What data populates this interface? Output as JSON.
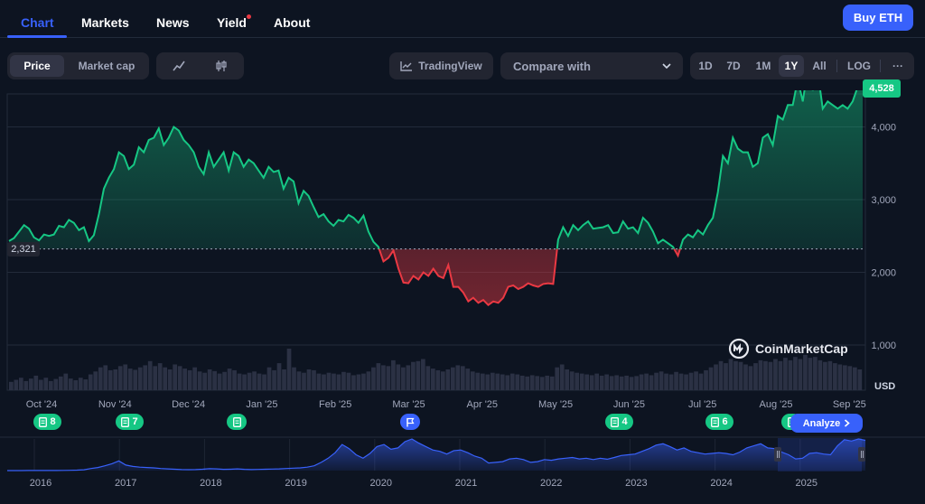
{
  "nav": {
    "tabs": [
      {
        "label": "Chart"
      },
      {
        "label": "Markets"
      },
      {
        "label": "News"
      },
      {
        "label": "Yield"
      },
      {
        "label": "About"
      }
    ],
    "buy_label": "Buy ETH"
  },
  "controls": {
    "price_label": "Price",
    "marketcap_label": "Market cap",
    "tradingview_label": "TradingView",
    "compare_label": "Compare with",
    "ranges": [
      "1D",
      "7D",
      "1M",
      "1Y",
      "All",
      "LOG"
    ],
    "active_range": "1Y",
    "more_label": "···"
  },
  "colors": {
    "up": "#16c784",
    "down": "#ea3943",
    "accent": "#3861fb",
    "background": "#0d1421"
  },
  "chart_data": {
    "type": "area",
    "y_unit": "USD",
    "baseline_value": 2321,
    "baseline_label": "2,321",
    "current_price": 4528,
    "current_price_label": "4,528",
    "ylim": [
      1000,
      4900
    ],
    "y_ticks": [
      1000,
      2000,
      3000,
      4000
    ],
    "y_tick_labels": [
      "1,000",
      "2,000",
      "3,000",
      "4,000"
    ],
    "x_tick_labels": [
      "Oct '24",
      "Nov '24",
      "Dec '24",
      "Jan '25",
      "Feb '25",
      "Mar '25",
      "Apr '25",
      "May '25",
      "Jun '25",
      "Jul '25",
      "Aug '25",
      "Sep '25"
    ],
    "grid": true,
    "prices": [
      2430,
      2470,
      2560,
      2650,
      2600,
      2480,
      2440,
      2520,
      2500,
      2520,
      2640,
      2620,
      2720,
      2680,
      2580,
      2620,
      2430,
      2510,
      2800,
      3150,
      3300,
      3420,
      3650,
      3600,
      3420,
      3480,
      3720,
      3650,
      3820,
      3850,
      3980,
      3750,
      3850,
      4000,
      3950,
      3820,
      3750,
      3650,
      3450,
      3350,
      3650,
      3450,
      3550,
      3650,
      3400,
      3650,
      3600,
      3450,
      3550,
      3500,
      3400,
      3300,
      3450,
      3380,
      3400,
      3150,
      3300,
      3250,
      2950,
      3120,
      3050,
      2900,
      2760,
      2800,
      2700,
      2640,
      2720,
      2700,
      2790,
      2750,
      2680,
      2780,
      2560,
      2420,
      2350,
      2150,
      2200,
      2300,
      2050,
      1860,
      1850,
      1950,
      1900,
      2000,
      1950,
      2050,
      1950,
      1920,
      2100,
      1800,
      1800,
      1720,
      1600,
      1650,
      1580,
      1620,
      1550,
      1600,
      1580,
      1650,
      1800,
      1820,
      1770,
      1800,
      1850,
      1820,
      1800,
      1840,
      1850,
      1840,
      2450,
      2620,
      2500,
      2650,
      2580,
      2650,
      2700,
      2600,
      2610,
      2620,
      2650,
      2540,
      2550,
      2700,
      2600,
      2620,
      2540,
      2750,
      2680,
      2560,
      2400,
      2450,
      2400,
      2350,
      2230,
      2450,
      2520,
      2480,
      2580,
      2520,
      2650,
      2750,
      3100,
      3600,
      3500,
      3850,
      3700,
      3650,
      3650,
      3450,
      3500,
      3850,
      3900,
      3750,
      4150,
      4100,
      4300,
      4300,
      4650,
      4350,
      4800,
      4500,
      4750,
      4250,
      4350,
      4300,
      4250,
      4300,
      4250,
      4350,
      4550,
      4528
    ],
    "volumes": [
      0.2,
      0.25,
      0.3,
      0.22,
      0.28,
      0.35,
      0.25,
      0.3,
      0.22,
      0.27,
      0.33,
      0.4,
      0.28,
      0.24,
      0.3,
      0.26,
      0.38,
      0.45,
      0.55,
      0.6,
      0.48,
      0.5,
      0.58,
      0.62,
      0.52,
      0.49,
      0.55,
      0.6,
      0.7,
      0.58,
      0.65,
      0.55,
      0.5,
      0.62,
      0.58,
      0.52,
      0.48,
      0.55,
      0.45,
      0.42,
      0.5,
      0.46,
      0.4,
      0.44,
      0.52,
      0.48,
      0.4,
      0.38,
      0.42,
      0.45,
      0.4,
      0.38,
      0.55,
      0.48,
      0.65,
      0.5,
      1.0,
      0.55,
      0.45,
      0.42,
      0.5,
      0.48,
      0.4,
      0.38,
      0.42,
      0.4,
      0.38,
      0.44,
      0.42,
      0.36,
      0.38,
      0.4,
      0.45,
      0.55,
      0.65,
      0.6,
      0.58,
      0.72,
      0.62,
      0.55,
      0.6,
      0.68,
      0.7,
      0.75,
      0.58,
      0.52,
      0.48,
      0.45,
      0.5,
      0.55,
      0.6,
      0.58,
      0.52,
      0.45,
      0.42,
      0.4,
      0.38,
      0.42,
      0.4,
      0.38,
      0.36,
      0.4,
      0.38,
      0.35,
      0.33,
      0.36,
      0.34,
      0.32,
      0.35,
      0.33,
      0.55,
      0.62,
      0.5,
      0.45,
      0.42,
      0.4,
      0.38,
      0.36,
      0.4,
      0.35,
      0.38,
      0.34,
      0.36,
      0.33,
      0.35,
      0.32,
      0.34,
      0.38,
      0.4,
      0.36,
      0.42,
      0.45,
      0.4,
      0.38,
      0.44,
      0.4,
      0.38,
      0.42,
      0.45,
      0.4,
      0.48,
      0.55,
      0.62,
      0.7,
      0.65,
      0.75,
      0.7,
      0.68,
      0.62,
      0.58,
      0.65,
      0.72,
      0.7,
      0.68,
      0.75,
      0.7,
      0.78,
      0.72,
      0.8,
      0.75,
      0.85,
      0.78,
      0.8,
      0.72,
      0.68,
      0.7,
      0.65,
      0.62,
      0.6,
      0.58,
      0.55,
      0.5
    ],
    "overview": {
      "type": "area",
      "x_tick_labels": [
        "2016",
        "2017",
        "2018",
        "2019",
        "2020",
        "2021",
        "2022",
        "2023",
        "2024",
        "2025"
      ],
      "prices": [
        2,
        3,
        5,
        8,
        10,
        12,
        14,
        18,
        25,
        40,
        60,
        120,
        300,
        450,
        700,
        1000,
        1400,
        800,
        600,
        500,
        450,
        400,
        300,
        250,
        200,
        150,
        130,
        150,
        200,
        280,
        250,
        180,
        200,
        250,
        180,
        150,
        170,
        200,
        230,
        250,
        300,
        350,
        400,
        500,
        700,
        1200,
        1800,
        2600,
        3800,
        3200,
        2300,
        1800,
        2500,
        3500,
        3800,
        3100,
        3300,
        4200,
        4600,
        4000,
        3500,
        3000,
        2800,
        2400,
        2900,
        3000,
        2600,
        2100,
        1800,
        1100,
        1200,
        1300,
        1700,
        1800,
        1600,
        1200,
        1300,
        1600,
        1500,
        1700,
        1800,
        1900,
        1700,
        1800,
        1600,
        1800,
        1650,
        1900,
        2200,
        2300,
        2400,
        2800,
        3200,
        3700,
        3900,
        3500,
        3000,
        3300,
        2800,
        2600,
        2400,
        2500,
        2600,
        2500,
        2300,
        2700,
        3300,
        3600,
        3900,
        3300,
        3200,
        2700,
        2300,
        1700,
        1800,
        2500,
        2600,
        2400,
        2300,
        3600,
        4500,
        4300,
        4600,
        4400
      ]
    }
  },
  "event_badges": [
    {
      "count": "8",
      "icon": "document-icon"
    },
    {
      "count": "7",
      "icon": "document-icon"
    },
    {
      "count": "",
      "icon": "document-icon"
    },
    {
      "count": "",
      "icon": "flag-icon"
    },
    {
      "count": "4",
      "icon": "document-icon"
    },
    {
      "count": "6",
      "icon": "document-icon"
    },
    {
      "count": "",
      "icon": "document-icon"
    }
  ],
  "analyze_label": "Analyze",
  "watermark": "CoinMarketCap",
  "usd_label": "USD"
}
